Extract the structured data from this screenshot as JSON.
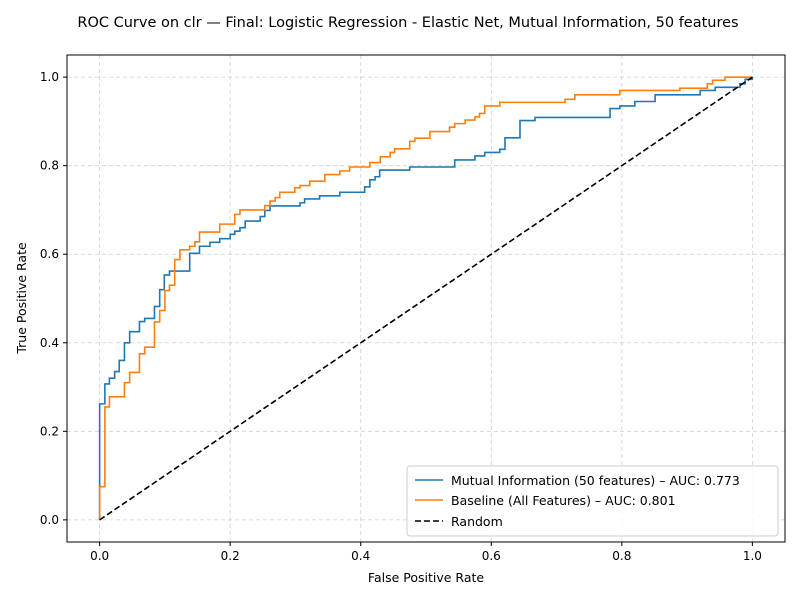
{
  "chart_data": {
    "type": "line",
    "title": "ROC Curve on clr — Final: Logistic Regression - Elastic Net, Mutual Information, 50 features",
    "xlabel": "False Positive Rate",
    "ylabel": "True Positive Rate",
    "xlim": [
      -0.05,
      1.05
    ],
    "ylim": [
      -0.05,
      1.05
    ],
    "xticks": [
      "0.0",
      "0.2",
      "0.4",
      "0.6",
      "0.8",
      "1.0"
    ],
    "yticks": [
      "0.0",
      "0.2",
      "0.4",
      "0.6",
      "0.8",
      "1.0"
    ],
    "grid": true,
    "legend_position": "lower-right",
    "series": [
      {
        "name": "Mutual Information (50 features) – AUC: 0.773",
        "color": "#1f77b4",
        "style": "solid",
        "x": [
          0.0,
          0.0,
          0.0,
          0.0,
          0.0,
          0.0,
          0.0,
          0.0,
          0.0,
          0.008,
          0.008,
          0.015,
          0.015,
          0.023,
          0.023,
          0.03,
          0.03,
          0.038,
          0.038,
          0.046,
          0.046,
          0.061,
          0.061,
          0.069,
          0.069,
          0.084,
          0.084,
          0.092,
          0.092,
          0.099,
          0.099,
          0.107,
          0.107,
          0.115,
          0.115,
          0.138,
          0.138,
          0.153,
          0.153,
          0.169,
          0.169,
          0.184,
          0.184,
          0.2,
          0.2,
          0.207,
          0.207,
          0.215,
          0.215,
          0.223,
          0.223,
          0.246,
          0.246,
          0.253,
          0.253,
          0.261,
          0.261,
          0.307,
          0.307,
          0.314,
          0.314,
          0.337,
          0.337,
          0.368,
          0.368,
          0.406,
          0.406,
          0.414,
          0.414,
          0.422,
          0.422,
          0.429,
          0.429,
          0.475,
          0.475,
          0.544,
          0.544,
          0.575,
          0.575,
          0.59,
          0.59,
          0.613,
          0.613,
          0.621,
          0.621,
          0.644,
          0.644,
          0.667,
          0.667,
          0.782,
          0.782,
          0.797,
          0.797,
          0.82,
          0.82,
          0.851,
          0.851,
          0.92,
          0.92,
          0.943,
          0.943,
          0.981,
          0.981,
          0.989,
          0.989,
          1.0,
          1.0
        ],
        "y": [
          0.0,
          0.06,
          0.07,
          0.08,
          0.09,
          0.1,
          0.15,
          0.2,
          0.262,
          0.262,
          0.307,
          0.307,
          0.32,
          0.32,
          0.335,
          0.335,
          0.36,
          0.36,
          0.4,
          0.4,
          0.425,
          0.425,
          0.448,
          0.448,
          0.455,
          0.455,
          0.482,
          0.482,
          0.52,
          0.52,
          0.553,
          0.553,
          0.562,
          0.562,
          0.562,
          0.562,
          0.602,
          0.602,
          0.618,
          0.618,
          0.627,
          0.627,
          0.635,
          0.635,
          0.645,
          0.645,
          0.652,
          0.652,
          0.66,
          0.66,
          0.675,
          0.675,
          0.685,
          0.685,
          0.699,
          0.699,
          0.709,
          0.709,
          0.716,
          0.716,
          0.725,
          0.725,
          0.732,
          0.732,
          0.74,
          0.74,
          0.752,
          0.752,
          0.768,
          0.768,
          0.775,
          0.775,
          0.79,
          0.79,
          0.797,
          0.797,
          0.813,
          0.813,
          0.822,
          0.822,
          0.83,
          0.83,
          0.837,
          0.837,
          0.863,
          0.863,
          0.902,
          0.902,
          0.909,
          0.909,
          0.929,
          0.929,
          0.935,
          0.935,
          0.945,
          0.945,
          0.96,
          0.96,
          0.97,
          0.97,
          0.977,
          0.977,
          0.985,
          0.985,
          0.995,
          0.995,
          1.0
        ]
      },
      {
        "name": "Baseline (All Features) – AUC: 0.801",
        "color": "#ff7f0e",
        "style": "solid",
        "x": [
          0.0,
          0.0,
          0.008,
          0.008,
          0.015,
          0.015,
          0.038,
          0.038,
          0.046,
          0.046,
          0.061,
          0.061,
          0.069,
          0.069,
          0.084,
          0.084,
          0.092,
          0.092,
          0.1,
          0.1,
          0.107,
          0.107,
          0.115,
          0.115,
          0.123,
          0.123,
          0.138,
          0.138,
          0.146,
          0.146,
          0.153,
          0.153,
          0.184,
          0.184,
          0.207,
          0.207,
          0.215,
          0.215,
          0.253,
          0.253,
          0.261,
          0.261,
          0.269,
          0.269,
          0.276,
          0.276,
          0.299,
          0.299,
          0.307,
          0.307,
          0.322,
          0.322,
          0.345,
          0.345,
          0.368,
          0.368,
          0.383,
          0.383,
          0.414,
          0.414,
          0.43,
          0.43,
          0.445,
          0.445,
          0.452,
          0.452,
          0.475,
          0.475,
          0.483,
          0.483,
          0.506,
          0.506,
          0.536,
          0.536,
          0.544,
          0.544,
          0.56,
          0.56,
          0.575,
          0.575,
          0.582,
          0.582,
          0.59,
          0.59,
          0.613,
          0.613,
          0.713,
          0.713,
          0.728,
          0.728,
          0.797,
          0.797,
          0.889,
          0.889,
          0.931,
          0.931,
          0.939,
          0.939,
          0.958,
          0.958,
          0.977,
          0.977,
          1.0
        ],
        "y": [
          0.0,
          0.075,
          0.075,
          0.255,
          0.255,
          0.278,
          0.278,
          0.31,
          0.31,
          0.333,
          0.333,
          0.375,
          0.375,
          0.39,
          0.39,
          0.447,
          0.447,
          0.473,
          0.473,
          0.518,
          0.518,
          0.53,
          0.53,
          0.588,
          0.588,
          0.61,
          0.61,
          0.618,
          0.618,
          0.628,
          0.628,
          0.65,
          0.65,
          0.668,
          0.668,
          0.69,
          0.69,
          0.7,
          0.7,
          0.71,
          0.71,
          0.72,
          0.72,
          0.728,
          0.728,
          0.74,
          0.74,
          0.75,
          0.75,
          0.755,
          0.755,
          0.765,
          0.765,
          0.78,
          0.78,
          0.788,
          0.788,
          0.797,
          0.797,
          0.807,
          0.807,
          0.82,
          0.82,
          0.83,
          0.83,
          0.838,
          0.838,
          0.855,
          0.855,
          0.862,
          0.862,
          0.877,
          0.877,
          0.887,
          0.887,
          0.895,
          0.895,
          0.903,
          0.903,
          0.91,
          0.91,
          0.918,
          0.918,
          0.935,
          0.935,
          0.943,
          0.943,
          0.95,
          0.95,
          0.96,
          0.96,
          0.97,
          0.97,
          0.975,
          0.975,
          0.985,
          0.985,
          0.993,
          0.993,
          1.0,
          1.0,
          1.0,
          1.0
        ]
      },
      {
        "name": "Random",
        "color": "#000000",
        "style": "dashed",
        "x": [
          0,
          1
        ],
        "y": [
          0,
          1
        ]
      }
    ]
  }
}
